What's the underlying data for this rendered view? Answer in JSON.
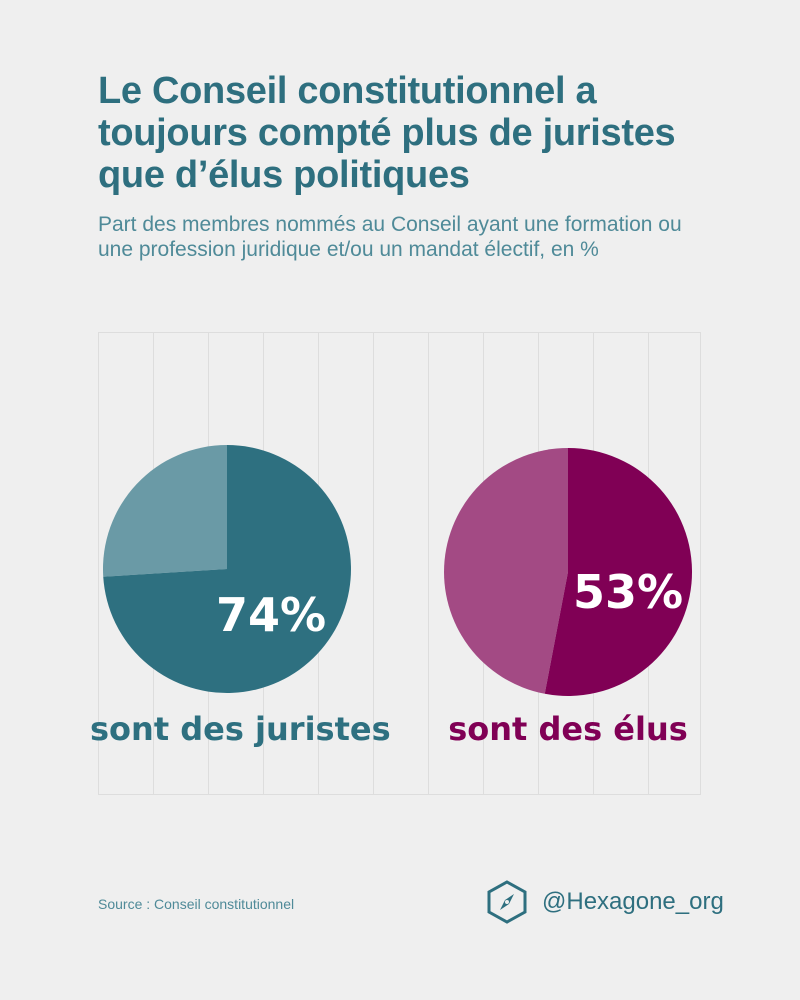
{
  "title": "Le Conseil constitutionnel a toujours compté plus de juristes que d’élus politiques",
  "subtitle": "Part des membres nommés au Conseil ayant une formation ou une profession juridique et/ou un mandat électif, en %",
  "colors": {
    "background": "#efefef",
    "teal": "#2e7080",
    "teal_light": "#6a9aa6",
    "magenta": "#800055",
    "magenta_light": "#a34a84",
    "title": "#2e6f7f"
  },
  "chart_data": [
    {
      "type": "pie",
      "value": 74,
      "remainder": 26,
      "value_label": "74%",
      "caption": "sont des juristes",
      "color": "#2e7080",
      "remainder_color": "#6a9aa6"
    },
    {
      "type": "pie",
      "value": 53,
      "remainder": 47,
      "value_label": "53%",
      "caption": "sont des élus",
      "color": "#800055",
      "remainder_color": "#a34a84"
    }
  ],
  "footer": {
    "source": "Source : Conseil constitutionnel",
    "handle": "@Hexagone_org",
    "logo_icon": "compass-hexagon-icon"
  }
}
